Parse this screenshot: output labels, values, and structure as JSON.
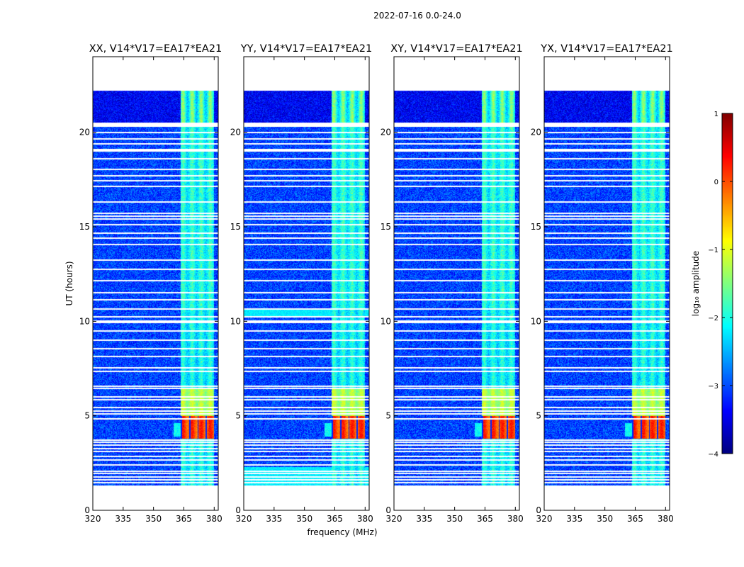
{
  "suptitle": "2022-07-16 0.0-24.0",
  "chart_data": [
    {
      "type": "heatmap",
      "title": "XX, V14*V17=EA17*EA21",
      "xlabel": "",
      "ylabel": "UT (hours)",
      "xlim": [
        320,
        382
      ],
      "ylim": [
        0,
        24
      ],
      "x_ticks": [
        320,
        335,
        350,
        365,
        380
      ],
      "y_ticks": [
        0,
        5,
        10,
        15,
        20
      ],
      "rfi_band_mhz": [
        363.5,
        380
      ],
      "strong_block_hours": [
        3.8,
        5.0
      ],
      "intensity": "xx"
    },
    {
      "type": "heatmap",
      "title": "YY, V14*V17=EA17*EA21",
      "xlabel": "frequency (MHz)",
      "ylabel": "",
      "xlim": [
        320,
        382
      ],
      "ylim": [
        0,
        24
      ],
      "x_ticks": [
        320,
        335,
        350,
        365,
        380
      ],
      "y_ticks": [
        0,
        5,
        10,
        15,
        20
      ],
      "rfi_band_mhz": [
        363.5,
        380
      ],
      "strong_block_hours": [
        3.8,
        5.0
      ],
      "intensity": "yy"
    },
    {
      "type": "heatmap",
      "title": "XY, V14*V17=EA17*EA21",
      "xlabel": "",
      "ylabel": "",
      "xlim": [
        320,
        382
      ],
      "ylim": [
        0,
        24
      ],
      "x_ticks": [
        320,
        335,
        350,
        365,
        380
      ],
      "y_ticks": [
        0,
        5,
        10,
        15,
        20
      ],
      "rfi_band_mhz": [
        363.5,
        380
      ],
      "strong_block_hours": [
        3.8,
        5.0
      ],
      "intensity": "xy"
    },
    {
      "type": "heatmap",
      "title": "YX, V14*V17=EA17*EA21",
      "xlabel": "",
      "ylabel": "",
      "xlim": [
        320,
        382
      ],
      "ylim": [
        0,
        24
      ],
      "x_ticks": [
        320,
        335,
        350,
        365,
        380
      ],
      "y_ticks": [
        0,
        5,
        10,
        15,
        20
      ],
      "rfi_band_mhz": [
        363.5,
        380
      ],
      "strong_block_hours": [
        3.8,
        5.0
      ],
      "intensity": "yx"
    }
  ],
  "colorbar": {
    "label": "log₁₀ amplitude",
    "range": [
      -4,
      1
    ],
    "ticks": [
      1,
      0,
      -1,
      -2,
      -3,
      -4
    ],
    "colormap": "jet"
  },
  "data_ranges": {
    "data_hours": [
      1.3,
      22.2
    ],
    "gap_hours": [
      20.3,
      20.5
    ]
  },
  "flagged_hours": [
    1.45,
    1.6,
    1.75,
    1.95,
    2.05,
    2.4,
    2.65,
    2.85,
    3.1,
    3.25,
    3.45,
    3.6,
    3.72,
    4.85,
    5.1,
    5.25,
    5.45,
    5.85,
    6.0,
    6.45,
    6.55,
    7.35,
    7.55,
    8.15,
    8.55,
    9.0,
    9.5,
    9.95,
    10.0,
    10.25,
    10.65,
    11.15,
    11.5,
    12.15,
    12.75,
    13.25,
    14.05,
    14.4,
    14.65,
    15.1,
    15.4,
    15.55,
    15.7,
    16.3,
    17.15,
    17.45,
    17.7,
    18.05,
    18.6,
    19.0,
    19.1,
    19.4,
    19.65,
    20.0
  ]
}
